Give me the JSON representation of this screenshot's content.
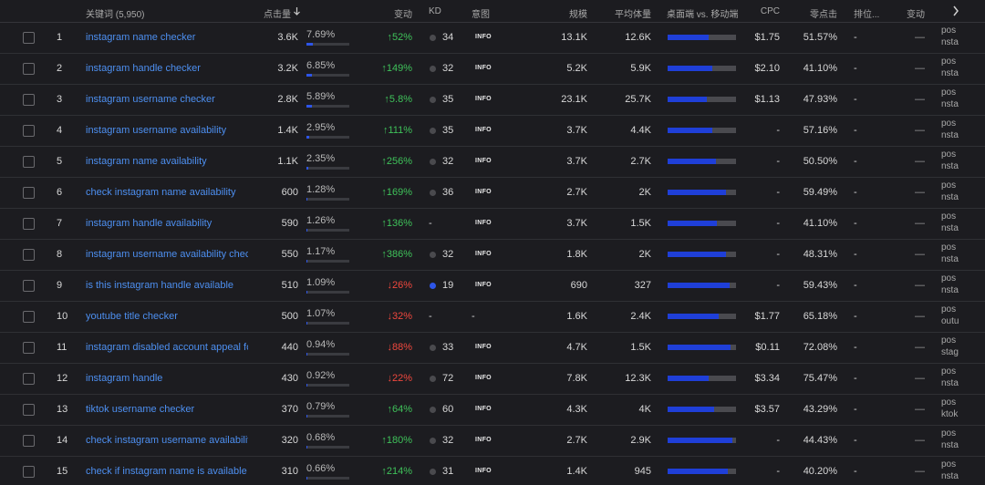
{
  "header": {
    "keyword": "关键词 (5,950)",
    "clicks": "点击量",
    "change": "变动",
    "kd": "KD",
    "intent": "意图",
    "scale": "规模",
    "avg_volume": "平均体量",
    "device": "桌面端 vs. 移动端",
    "cpc": "CPC",
    "zero_click": "零点击",
    "rank": "排位...",
    "rank_change": "变动"
  },
  "rows": [
    {
      "index": 1,
      "keyword": "instagram name checker",
      "clicks": "3.6K",
      "share": {
        "value": 7.69,
        "label": "7.69%"
      },
      "change": "↑52%",
      "kd": 34,
      "kd_color": "#4a4a4e",
      "intent": "INFO",
      "scale": "13.1K",
      "avg_volume": "12.6K",
      "desktop_share": 60,
      "cpc": "$1.75",
      "zero_click": "51.57%",
      "rank": "-",
      "rank_change": "—",
      "url": [
        "pos",
        "nsta"
      ]
    },
    {
      "index": 2,
      "keyword": "instagram handle checker",
      "clicks": "3.2K",
      "share": {
        "value": 6.85,
        "label": "6.85%"
      },
      "change": "↑149%",
      "kd": 32,
      "kd_color": "#4a4a4e",
      "intent": "INFO",
      "scale": "5.2K",
      "avg_volume": "5.9K",
      "desktop_share": 65,
      "cpc": "$2.10",
      "zero_click": "41.10%",
      "rank": "-",
      "rank_change": "—",
      "url": [
        "pos",
        "nsta"
      ]
    },
    {
      "index": 3,
      "keyword": "instagram username checker",
      "clicks": "2.8K",
      "share": {
        "value": 5.89,
        "label": "5.89%"
      },
      "change": "↑5.8%",
      "kd": 35,
      "kd_color": "#4a4a4e",
      "intent": "INFO",
      "scale": "23.1K",
      "avg_volume": "25.7K",
      "desktop_share": 57,
      "cpc": "$1.13",
      "zero_click": "47.93%",
      "rank": "-",
      "rank_change": "—",
      "url": [
        "pos",
        "nsta"
      ]
    },
    {
      "index": 4,
      "keyword": "instagram username availability",
      "clicks": "1.4K",
      "share": {
        "value": 2.95,
        "label": "2.95%"
      },
      "change": "↑111%",
      "kd": 35,
      "kd_color": "#4a4a4e",
      "intent": "INFO",
      "scale": "3.7K",
      "avg_volume": "4.4K",
      "desktop_share": 65,
      "cpc": "-",
      "zero_click": "57.16%",
      "rank": "-",
      "rank_change": "—",
      "url": [
        "pos",
        "nsta"
      ]
    },
    {
      "index": 5,
      "keyword": "instagram name availability",
      "clicks": "1.1K",
      "share": {
        "value": 2.35,
        "label": "2.35%"
      },
      "change": "↑256%",
      "kd": 32,
      "kd_color": "#4a4a4e",
      "intent": "INFO",
      "scale": "3.7K",
      "avg_volume": "2.7K",
      "desktop_share": 70,
      "cpc": "-",
      "zero_click": "50.50%",
      "rank": "-",
      "rank_change": "—",
      "url": [
        "pos",
        "nsta"
      ]
    },
    {
      "index": 6,
      "keyword": "check instagram name availability",
      "clicks": "600",
      "share": {
        "value": 1.28,
        "label": "1.28%"
      },
      "change": "↑169%",
      "kd": 36,
      "kd_color": "#4a4a4e",
      "intent": "INFO",
      "scale": "2.7K",
      "avg_volume": "2K",
      "desktop_share": 85,
      "cpc": "-",
      "zero_click": "59.49%",
      "rank": "-",
      "rank_change": "—",
      "url": [
        "pos",
        "nsta"
      ]
    },
    {
      "index": 7,
      "keyword": "instagram handle availability",
      "clicks": "590",
      "share": {
        "value": 1.26,
        "label": "1.26%"
      },
      "change": "↑136%",
      "kd": "-",
      "intent": "INFO",
      "scale": "3.7K",
      "avg_volume": "1.5K",
      "desktop_share": 72,
      "cpc": "-",
      "zero_click": "41.10%",
      "rank": "-",
      "rank_change": "—",
      "url": [
        "pos",
        "nsta"
      ]
    },
    {
      "index": 8,
      "keyword": "instagram username availability chec",
      "clicks": "550",
      "share": {
        "value": 1.17,
        "label": "1.17%"
      },
      "change": "↑386%",
      "kd": 32,
      "kd_color": "#4a4a4e",
      "intent": "INFO",
      "scale": "1.8K",
      "avg_volume": "2K",
      "desktop_share": 85,
      "cpc": "-",
      "zero_click": "48.31%",
      "rank": "-",
      "rank_change": "—",
      "url": [
        "pos",
        "nsta"
      ]
    },
    {
      "index": 9,
      "keyword": "is this instagram handle available",
      "clicks": "510",
      "share": {
        "value": 1.09,
        "label": "1.09%"
      },
      "change": "↓26%",
      "kd": 19,
      "kd_color": "#2d55e8",
      "intent": "INFO",
      "scale": "690",
      "avg_volume": "327",
      "desktop_share": 90,
      "cpc": "-",
      "zero_click": "59.43%",
      "rank": "-",
      "rank_change": "—",
      "url": [
        "pos",
        "nsta"
      ]
    },
    {
      "index": 10,
      "keyword": "youtube title checker",
      "clicks": "500",
      "share": {
        "value": 1.07,
        "label": "1.07%"
      },
      "change": "↓32%",
      "kd": "-",
      "intent": "-",
      "scale": "1.6K",
      "avg_volume": "2.4K",
      "desktop_share": 75,
      "cpc": "$1.77",
      "zero_click": "65.18%",
      "rank": "-",
      "rank_change": "—",
      "url": [
        "pos",
        "outu"
      ]
    },
    {
      "index": 11,
      "keyword": "instagram disabled account appeal fc",
      "clicks": "440",
      "share": {
        "value": 0.94,
        "label": "0.94%"
      },
      "change": "↓88%",
      "kd": 33,
      "kd_color": "#4a4a4e",
      "intent": "INFO",
      "scale": "4.7K",
      "avg_volume": "1.5K",
      "desktop_share": 92,
      "cpc": "$0.11",
      "zero_click": "72.08%",
      "rank": "-",
      "rank_change": "—",
      "url": [
        "pos",
        "stag"
      ]
    },
    {
      "index": 12,
      "keyword": "instagram handle",
      "clicks": "430",
      "share": {
        "value": 0.92,
        "label": "0.92%"
      },
      "change": "↓22%",
      "kd": 72,
      "kd_color": "#4a4a4e",
      "intent": "INFO",
      "scale": "7.8K",
      "avg_volume": "12.3K",
      "desktop_share": 60,
      "cpc": "$3.34",
      "zero_click": "75.47%",
      "rank": "-",
      "rank_change": "—",
      "url": [
        "pos",
        "nsta"
      ]
    },
    {
      "index": 13,
      "keyword": "tiktok username checker",
      "clicks": "370",
      "share": {
        "value": 0.79,
        "label": "0.79%"
      },
      "change": "↑64%",
      "kd": 60,
      "kd_color": "#4a4a4e",
      "intent": "INFO",
      "scale": "4.3K",
      "avg_volume": "4K",
      "desktop_share": 68,
      "cpc": "$3.57",
      "zero_click": "43.29%",
      "rank": "-",
      "rank_change": "—",
      "url": [
        "pos",
        "ktok"
      ]
    },
    {
      "index": 14,
      "keyword": "check instagram username availabilit",
      "clicks": "320",
      "share": {
        "value": 0.68,
        "label": "0.68%"
      },
      "change": "↑180%",
      "kd": 32,
      "kd_color": "#4a4a4e",
      "intent": "INFO",
      "scale": "2.7K",
      "avg_volume": "2.9K",
      "desktop_share": 95,
      "cpc": "-",
      "zero_click": "44.43%",
      "rank": "-",
      "rank_change": "—",
      "url": [
        "pos",
        "nsta"
      ]
    },
    {
      "index": 15,
      "keyword": "check if instagram name is available",
      "clicks": "310",
      "share": {
        "value": 0.66,
        "label": "0.66%"
      },
      "change": "↑214%",
      "kd": 31,
      "kd_color": "#4a4a4e",
      "intent": "INFO",
      "scale": "1.4K",
      "avg_volume": "945",
      "desktop_share": 88,
      "cpc": "-",
      "zero_click": "40.20%",
      "rank": "-",
      "rank_change": "—",
      "url": [
        "pos",
        "nsta"
      ]
    }
  ]
}
